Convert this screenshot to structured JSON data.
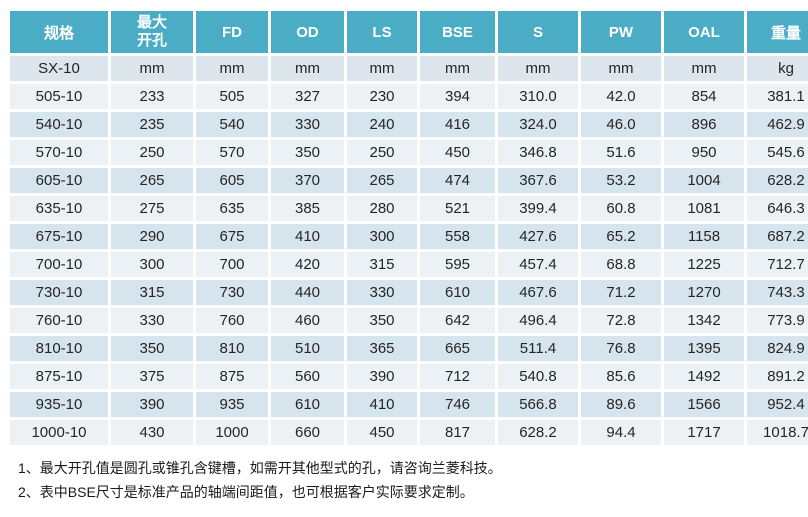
{
  "table": {
    "header": [
      "规格",
      "最大开孔",
      "FD",
      "OD",
      "LS",
      "BSE",
      "S",
      "PW",
      "OAL",
      "重量"
    ],
    "units_row": [
      "SX-10",
      "mm",
      "mm",
      "mm",
      "mm",
      "mm",
      "mm",
      "mm",
      "mm",
      "kg"
    ],
    "rows": [
      [
        "505-10",
        "233",
        "505",
        "327",
        "230",
        "394",
        "310.0",
        "42.0",
        "854",
        "381.1"
      ],
      [
        "540-10",
        "235",
        "540",
        "330",
        "240",
        "416",
        "324.0",
        "46.0",
        "896",
        "462.9"
      ],
      [
        "570-10",
        "250",
        "570",
        "350",
        "250",
        "450",
        "346.8",
        "51.6",
        "950",
        "545.6"
      ],
      [
        "605-10",
        "265",
        "605",
        "370",
        "265",
        "474",
        "367.6",
        "53.2",
        "1004",
        "628.2"
      ],
      [
        "635-10",
        "275",
        "635",
        "385",
        "280",
        "521",
        "399.4",
        "60.8",
        "1081",
        "646.3"
      ],
      [
        "675-10",
        "290",
        "675",
        "410",
        "300",
        "558",
        "427.6",
        "65.2",
        "1158",
        "687.2"
      ],
      [
        "700-10",
        "300",
        "700",
        "420",
        "315",
        "595",
        "457.4",
        "68.8",
        "1225",
        "712.7"
      ],
      [
        "730-10",
        "315",
        "730",
        "440",
        "330",
        "610",
        "467.6",
        "71.2",
        "1270",
        "743.3"
      ],
      [
        "760-10",
        "330",
        "760",
        "460",
        "350",
        "642",
        "496.4",
        "72.8",
        "1342",
        "773.9"
      ],
      [
        "810-10",
        "350",
        "810",
        "510",
        "365",
        "665",
        "511.4",
        "76.8",
        "1395",
        "824.9"
      ],
      [
        "875-10",
        "375",
        "875",
        "560",
        "390",
        "712",
        "540.8",
        "85.6",
        "1492",
        "891.2"
      ],
      [
        "935-10",
        "390",
        "935",
        "610",
        "410",
        "746",
        "566.8",
        "89.6",
        "1566",
        "952.4"
      ],
      [
        "1000-10",
        "430",
        "1000",
        "660",
        "450",
        "817",
        "628.2",
        "94.4",
        "1717",
        "1018.7"
      ]
    ]
  },
  "notes": [
    "1、最大开孔值是圆孔或锥孔含键槽，如需开其他型式的孔，请咨询兰菱科技。",
    "2、表中BSE尺寸是标准产品的轴端间距值，也可根据客户实际要求定制。"
  ],
  "colors": {
    "header_bg": "#4BACC6",
    "header_text": "#FFFFFF",
    "units_row_bg": "#DCE6EC",
    "row_light_bg": "#ECF1F5",
    "row_alt_bg": "#D6E4EE",
    "cell_text": "#252525"
  }
}
